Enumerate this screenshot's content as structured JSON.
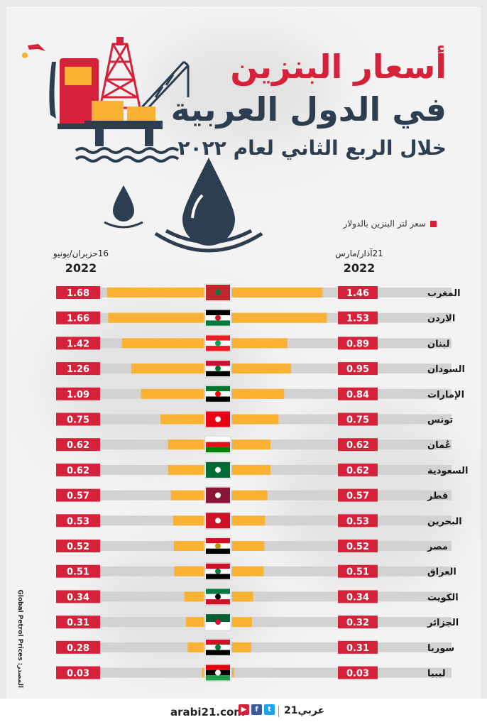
{
  "header": {
    "title_line1": "أسعار البنزين",
    "title_line2": "في الدول العربية",
    "subtitle": "خلال الربع الثاني لعام ٢٠٢٢"
  },
  "legend": {
    "label": "سعر لتر البنزين بالدولار",
    "color": "#d5213a"
  },
  "columns": {
    "left": {
      "date": "16حزيران/يونيو",
      "year": "2022"
    },
    "right": {
      "date": "21آذار/مارس",
      "year": "2022"
    }
  },
  "colors": {
    "bar": "#f9b233",
    "track": "#d2d2d2",
    "value_box": "#d5213a",
    "title_red": "#d5213a",
    "title_dark": "#2c3e50"
  },
  "source": "المصدر: Global Petrol Prices",
  "footer": {
    "site": "arabi21.com",
    "brand": "عربي21",
    "social_icons": [
      "youtube-icon",
      "facebook-icon",
      "twitter-icon"
    ]
  },
  "chart_data": {
    "type": "bar",
    "categories": [
      "المغرب",
      "الاردن",
      "لبنان",
      "السودان",
      "الإمارات",
      "تونس",
      "عُمان",
      "السعودية",
      "قطر",
      "البحرين",
      "مصر",
      "العراق",
      "الكويت",
      "الجزائر",
      "سوريا",
      "ليبيا"
    ],
    "series": [
      {
        "name": "21آذار/مارس 2022",
        "values": [
          1.46,
          1.53,
          0.89,
          0.95,
          0.84,
          0.75,
          0.62,
          0.62,
          0.57,
          0.53,
          0.52,
          0.51,
          0.34,
          0.32,
          0.31,
          0.03
        ]
      },
      {
        "name": "16حزيران/يونيو 2022",
        "values": [
          1.68,
          1.66,
          1.42,
          1.26,
          1.09,
          0.75,
          0.62,
          0.62,
          0.57,
          0.53,
          0.52,
          0.51,
          0.34,
          0.31,
          0.28,
          0.03
        ]
      }
    ],
    "value_labels": {
      "march": [
        "1.46",
        "1.53",
        "0.89",
        "0.95",
        "0.84",
        "0.75",
        "0.62",
        "0.62",
        "0.57",
        "0.53",
        "0.52",
        "0.51",
        "0.34",
        "0.32",
        "0.31",
        "0.03"
      ],
      "june": [
        "1.68",
        "1.66",
        "1.42",
        "1.26",
        "1.09",
        "0.75",
        "0.62",
        "0.62",
        "0.57",
        "0.53",
        "0.52",
        "0.51",
        "0.34",
        "0.31",
        "0.28",
        "0.03"
      ]
    },
    "flags": [
      "morocco-flag",
      "jordan-flag",
      "lebanon-flag",
      "sudan-flag",
      "uae-flag",
      "tunisia-flag",
      "oman-flag",
      "saudi-flag",
      "qatar-flag",
      "bahrain-flag",
      "egypt-flag",
      "iraq-flag",
      "kuwait-flag",
      "algeria-flag",
      "syria-flag",
      "libya-flag"
    ],
    "xlim": [
      0,
      1.8
    ]
  }
}
